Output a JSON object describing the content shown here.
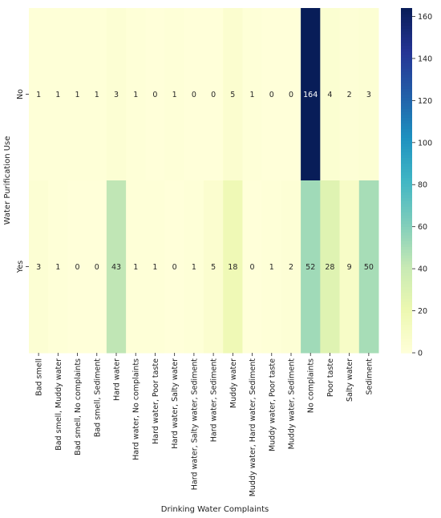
{
  "chart_data": {
    "type": "heatmap",
    "xlabel": "Drinking Water Complaints",
    "ylabel": "Water Purification Use",
    "x_categories": [
      "Bad smell",
      "Bad smell, Muddy water",
      "Bad smell, No complaints",
      "Bad smell, Sediment",
      "Hard water",
      "Hard water, No complaints",
      "Hard water, Poor taste",
      "Hard water, Salty water",
      "Hard water, Salty water, Sediment",
      "Hard water, Sediment",
      "Muddy water",
      "Muddy water, Hard water, Sediment",
      "Muddy water, Poor taste",
      "Muddy water, Sediment",
      "No complaints",
      "Poor taste",
      "Salty water",
      "Sediment"
    ],
    "y_categories": [
      "No",
      "Yes"
    ],
    "values": [
      [
        1,
        1,
        1,
        1,
        3,
        1,
        0,
        1,
        0,
        0,
        5,
        1,
        0,
        0,
        164,
        4,
        2,
        3
      ],
      [
        3,
        1,
        0,
        0,
        43,
        1,
        1,
        0,
        1,
        5,
        18,
        0,
        1,
        2,
        52,
        28,
        9,
        50
      ]
    ],
    "colorbar": {
      "colormap": "YlGnBu",
      "min": 0,
      "max": 164,
      "ticks": [
        0,
        20,
        40,
        60,
        80,
        100,
        120,
        140,
        160
      ]
    },
    "annotate": true
  }
}
